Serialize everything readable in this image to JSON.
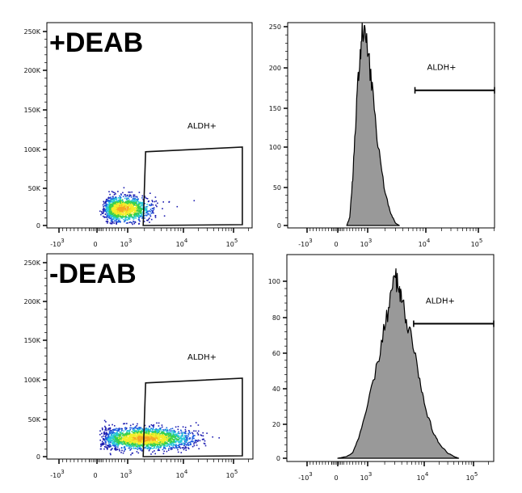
{
  "chart_data": [
    {
      "type": "scatter",
      "title": "+DEAB",
      "x_ticks": [
        {
          "v": -1000,
          "base": "-10",
          "exp": "3"
        },
        {
          "v": 0,
          "base": "0",
          "exp": ""
        },
        {
          "v": 1000,
          "base": "10",
          "exp": "3"
        },
        {
          "v": 10000,
          "base": "10",
          "exp": "4"
        },
        {
          "v": 100000,
          "base": "10",
          "exp": "5"
        }
      ],
      "y_ticks": [
        {
          "v": 0,
          "label": "0"
        },
        {
          "v": 50000,
          "label": "50K"
        },
        {
          "v": 100000,
          "label": "100K"
        },
        {
          "v": 150000,
          "label": "150K"
        },
        {
          "v": 200000,
          "label": "200K"
        },
        {
          "v": 250000,
          "label": "250K"
        }
      ],
      "ylim": [
        0,
        260000
      ],
      "cluster": {
        "x_center": 800,
        "y_center": 22000,
        "x_log_spread": 0.25,
        "y_spread": 8000,
        "n": 1400
      },
      "gate": {
        "label": "ALDH+",
        "polygon": [
          [
            1900,
            0
          ],
          [
            2100,
            95000
          ],
          [
            150000,
            101000
          ],
          [
            150000,
            1000
          ]
        ]
      }
    },
    {
      "type": "histogram",
      "x_ticks": [
        {
          "v": -1000,
          "base": "-10",
          "exp": "3"
        },
        {
          "v": 0,
          "base": "0",
          "exp": ""
        },
        {
          "v": 1000,
          "base": "10",
          "exp": "3"
        },
        {
          "v": 10000,
          "base": "10",
          "exp": "4"
        },
        {
          "v": 100000,
          "base": "10",
          "exp": "5"
        }
      ],
      "y_ticks": [
        {
          "v": 0,
          "label": "0"
        },
        {
          "v": 50,
          "label": "50"
        },
        {
          "v": 100,
          "label": "100"
        },
        {
          "v": 150,
          "label": "150"
        },
        {
          "v": 200,
          "label": "200"
        },
        {
          "v": 250,
          "label": "250"
        }
      ],
      "ylim": [
        0,
        255
      ],
      "x": [
        300,
        400,
        500,
        600,
        700,
        800,
        900,
        1000,
        1200,
        1500,
        2000,
        2500,
        3000,
        3500
      ],
      "counts": [
        0,
        10,
        60,
        130,
        195,
        238,
        242,
        222,
        170,
        100,
        40,
        15,
        3,
        0
      ],
      "gate": {
        "label": "ALDH+",
        "range": [
          6500,
          150000
        ],
        "level": 170
      }
    },
    {
      "type": "scatter",
      "title": "-DEAB",
      "x_ticks": [
        {
          "v": -1000,
          "base": "-10",
          "exp": "3"
        },
        {
          "v": 0,
          "base": "0",
          "exp": ""
        },
        {
          "v": 1000,
          "base": "10",
          "exp": "3"
        },
        {
          "v": 10000,
          "base": "10",
          "exp": "4"
        },
        {
          "v": 100000,
          "base": "10",
          "exp": "5"
        }
      ],
      "y_ticks": [
        {
          "v": 0,
          "label": "0"
        },
        {
          "v": 50000,
          "label": "50K"
        },
        {
          "v": 100000,
          "label": "100K"
        },
        {
          "v": 150000,
          "label": "150K"
        },
        {
          "v": 200000,
          "label": "200K"
        },
        {
          "v": 250000,
          "label": "250K"
        }
      ],
      "ylim": [
        0,
        260000
      ],
      "cluster": {
        "x_center": 2000,
        "y_center": 24000,
        "x_log_spread": 0.42,
        "y_spread": 7000,
        "n": 2200
      },
      "gate": {
        "label": "ALDH+",
        "polygon": [
          [
            1900,
            0
          ],
          [
            2100,
            95000
          ],
          [
            150000,
            101000
          ],
          [
            150000,
            1000
          ]
        ]
      }
    },
    {
      "type": "histogram",
      "x_ticks": [
        {
          "v": -1000,
          "base": "-10",
          "exp": "3"
        },
        {
          "v": 0,
          "base": "0",
          "exp": ""
        },
        {
          "v": 1000,
          "base": "10",
          "exp": "3"
        },
        {
          "v": 10000,
          "base": "10",
          "exp": "4"
        },
        {
          "v": 100000,
          "base": "10",
          "exp": "5"
        }
      ],
      "y_ticks": [
        {
          "v": 0,
          "label": "0"
        },
        {
          "v": 20,
          "label": "20"
        },
        {
          "v": 40,
          "label": "40"
        },
        {
          "v": 60,
          "label": "60"
        },
        {
          "v": 80,
          "label": "80"
        },
        {
          "v": 100,
          "label": "100"
        }
      ],
      "ylim": [
        0,
        113
      ],
      "x": [
        0,
        300,
        500,
        700,
        1000,
        1500,
        2000,
        2500,
        3000,
        3500,
        4000,
        5000,
        6000,
        8000,
        10000,
        15000,
        20000,
        30000,
        40000,
        50000
      ],
      "counts": [
        0,
        1,
        3,
        12,
        30,
        55,
        75,
        90,
        103,
        95,
        88,
        76,
        66,
        48,
        30,
        15,
        8,
        3,
        1,
        0
      ],
      "gate": {
        "label": "ALDH+",
        "range": [
          6500,
          150000
        ],
        "level": 76
      }
    }
  ],
  "colors": {
    "fill": "#999999",
    "line": "#000000"
  }
}
